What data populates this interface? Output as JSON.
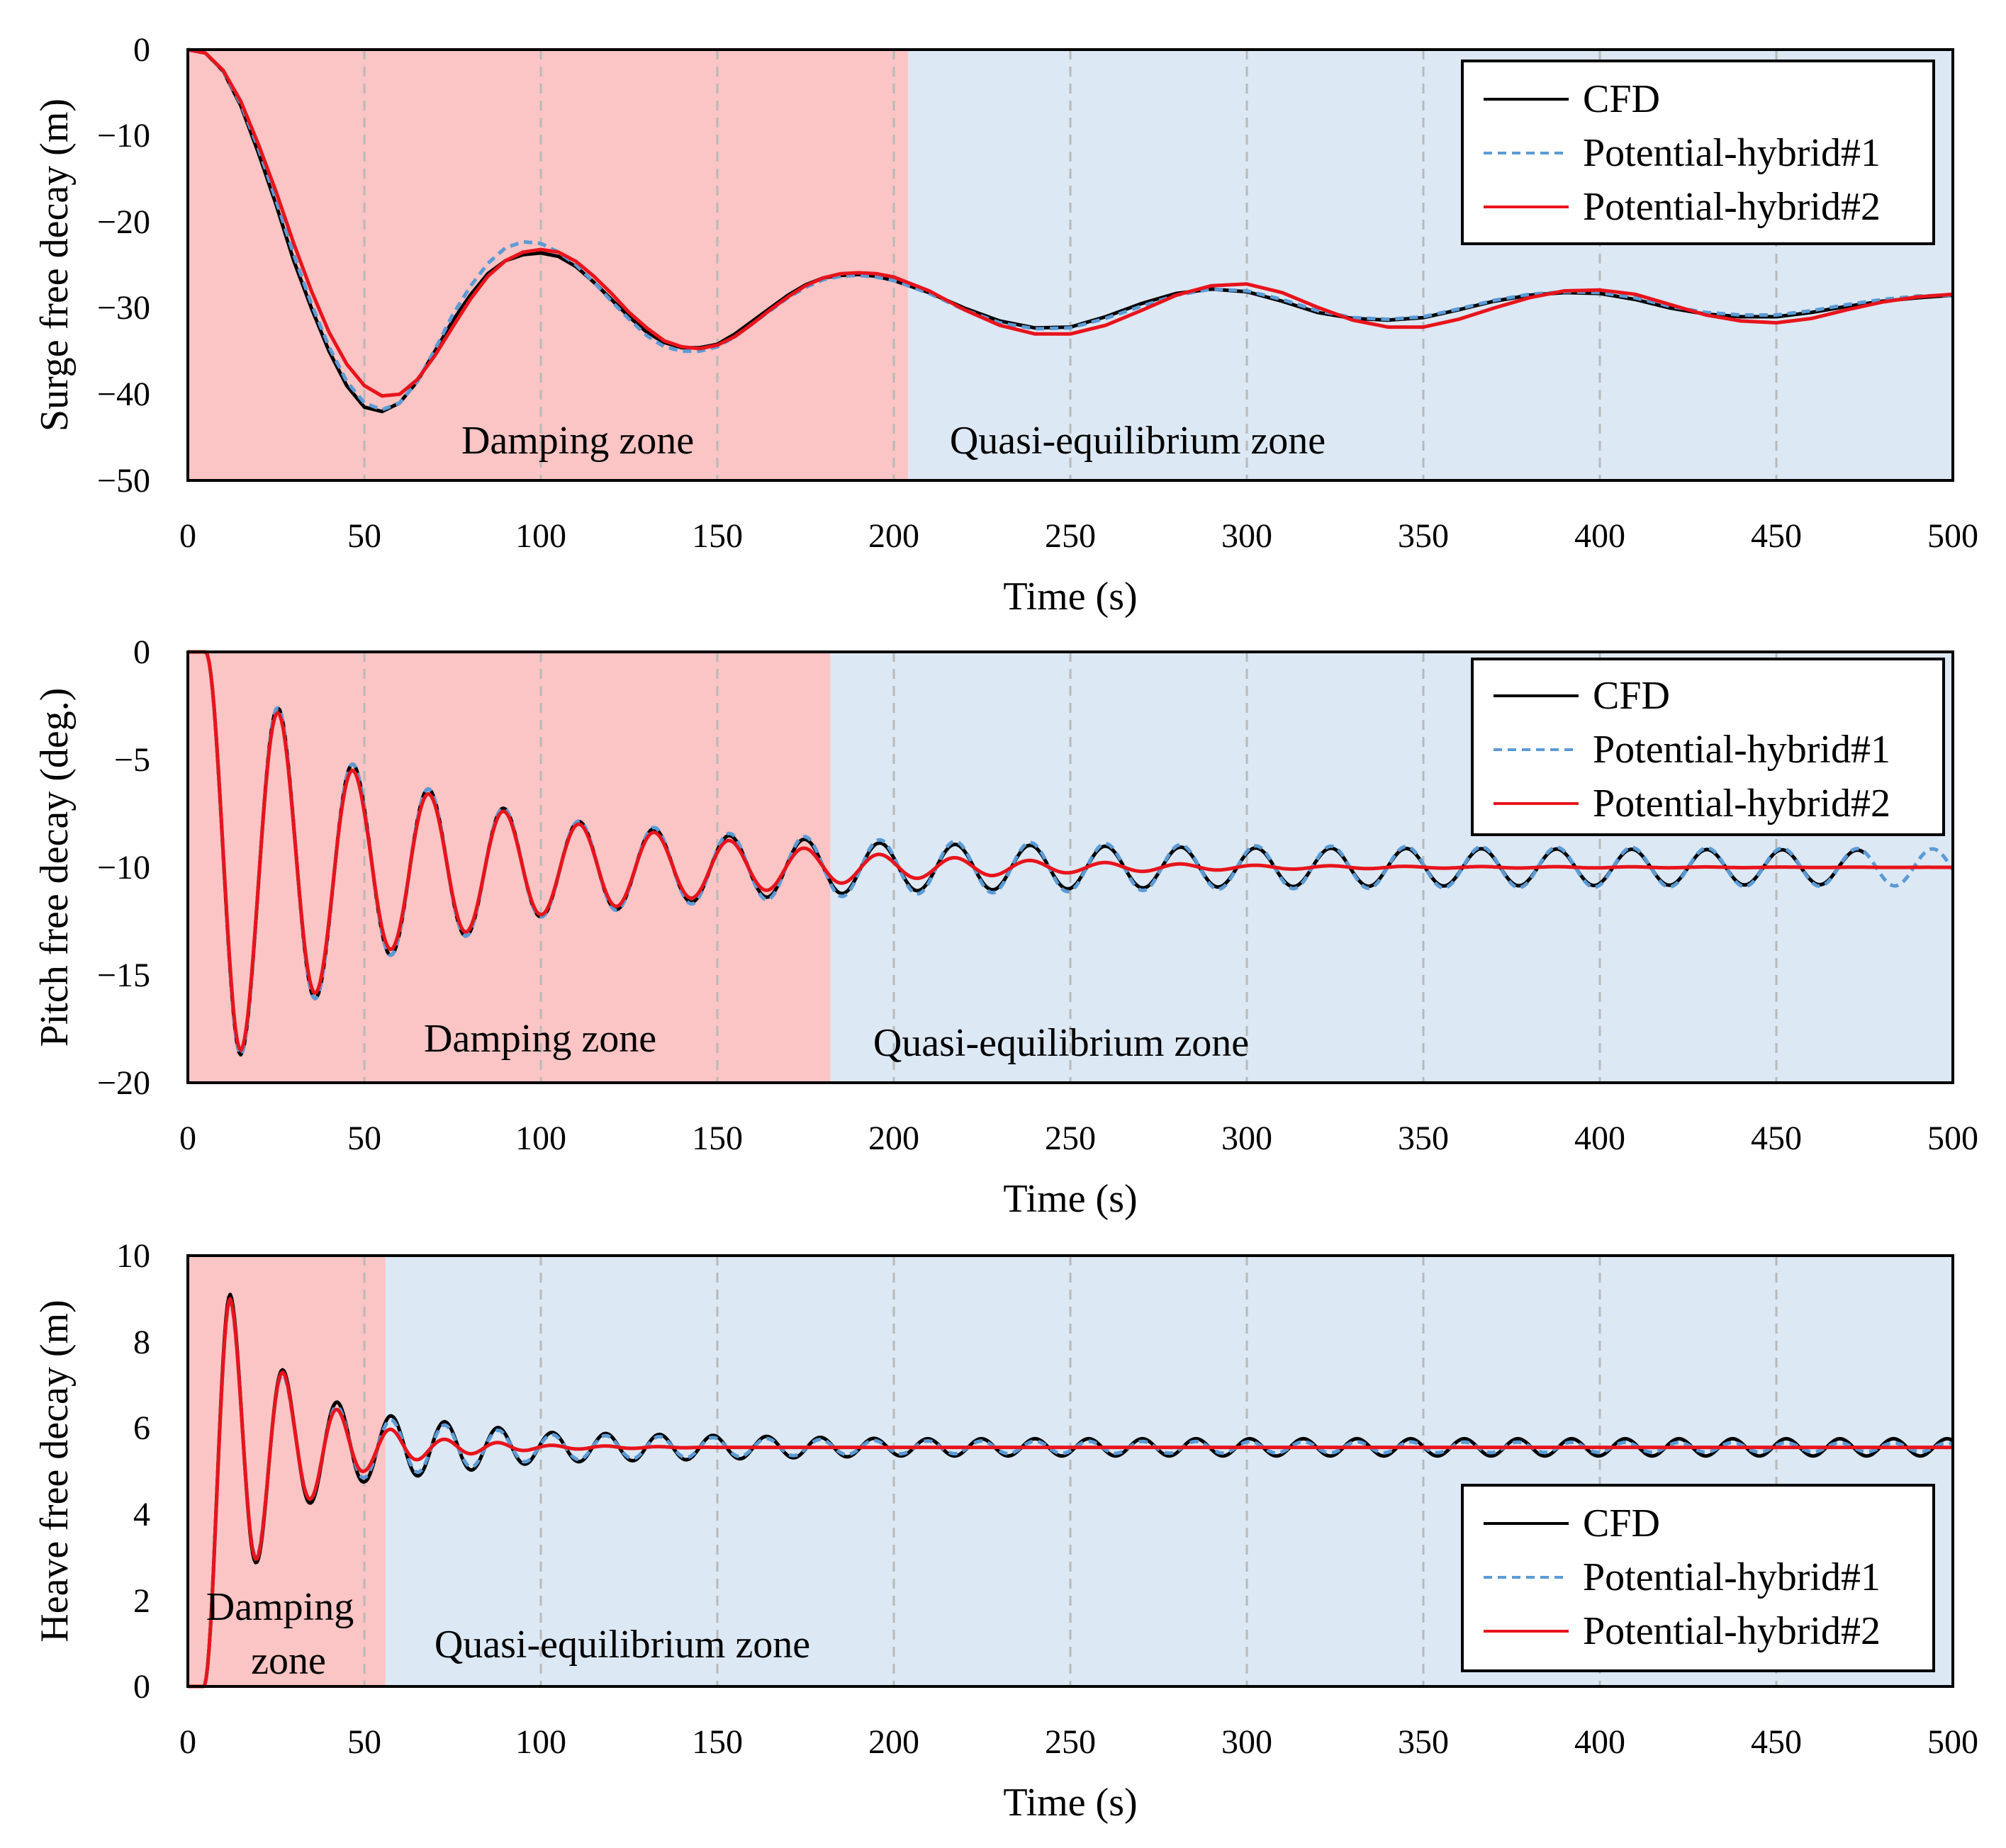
{
  "colors": {
    "damping_zone": "#fbc4c5",
    "equilibrium_zone": "#dce8f4",
    "grid": "#b9b9b9",
    "cfd": "#000000",
    "hybrid1": "#5b9bd5",
    "hybrid2": "#e8141c"
  },
  "chart_data": [
    {
      "type": "line",
      "id": "surge",
      "xlabel": "Time (s)",
      "ylabel": "Surge free decay (m)",
      "xlim": [
        0,
        500
      ],
      "ylim": [
        -50,
        0
      ],
      "x_ticks": [
        0,
        50,
        100,
        150,
        200,
        250,
        300,
        350,
        400,
        450,
        500
      ],
      "y_ticks": [
        0,
        -10,
        -20,
        -30,
        -40,
        -50
      ],
      "y_tick_labels": [
        "0",
        "−10",
        "−20",
        "−30",
        "−40",
        "−50"
      ],
      "grid": "vertical-dashed",
      "legend_position": "top-right",
      "zones": [
        {
          "label": "Damping zone",
          "x_start": 0,
          "x_end": 204,
          "color_key": "damping_zone"
        },
        {
          "label": "Quasi-equilibrium zone",
          "x_start": 204,
          "x_end": 500,
          "color_key": "equilibrium_zone"
        }
      ],
      "series": [
        {
          "name": "CFD",
          "color_key": "cfd",
          "style": "solid",
          "x": [
            0,
            5,
            10,
            15,
            20,
            25,
            30,
            35,
            40,
            45,
            50,
            55,
            60,
            65,
            70,
            75,
            80,
            85,
            90,
            95,
            100,
            105,
            110,
            115,
            120,
            125,
            130,
            135,
            140,
            145,
            150,
            155,
            160,
            165,
            170,
            175,
            180,
            185,
            190,
            195,
            200,
            210,
            220,
            230,
            240,
            250,
            260,
            270,
            280,
            290,
            300,
            310,
            320,
            330,
            340,
            350,
            360,
            370,
            380,
            390,
            400,
            410,
            420,
            430,
            440,
            450,
            460,
            470,
            480,
            490,
            500
          ],
          "y": [
            0,
            -0.4,
            -2.5,
            -6.5,
            -12,
            -18,
            -24.5,
            -30,
            -35,
            -39,
            -41.5,
            -42,
            -41,
            -38.5,
            -35,
            -31.5,
            -28.5,
            -26,
            -24.5,
            -23.8,
            -23.6,
            -24,
            -25.2,
            -27,
            -29,
            -31,
            -32.8,
            -34,
            -34.6,
            -34.6,
            -34.2,
            -33,
            -31.5,
            -30,
            -28.5,
            -27.3,
            -26.5,
            -26.2,
            -26.1,
            -26.3,
            -26.8,
            -28.2,
            -30,
            -31.5,
            -32.3,
            -32.2,
            -31,
            -29.5,
            -28.3,
            -27.8,
            -28.1,
            -29.2,
            -30.5,
            -31.2,
            -31.4,
            -31.1,
            -30.2,
            -29.2,
            -28.5,
            -28.2,
            -28.3,
            -29,
            -30,
            -30.7,
            -31,
            -31,
            -30.5,
            -29.8,
            -29.2,
            -28.8,
            -28.5
          ]
        },
        {
          "name": "Potential-hybrid#1",
          "color_key": "hybrid1",
          "style": "dashed",
          "x": [
            0,
            5,
            10,
            15,
            20,
            25,
            30,
            35,
            40,
            45,
            50,
            55,
            60,
            65,
            70,
            75,
            80,
            85,
            90,
            95,
            100,
            105,
            110,
            115,
            120,
            125,
            130,
            135,
            140,
            145,
            150,
            155,
            160,
            165,
            170,
            175,
            180,
            185,
            190,
            195,
            200,
            210,
            220,
            230,
            240,
            250,
            260,
            270,
            280,
            290,
            300,
            310,
            320,
            330,
            340,
            350,
            360,
            370,
            380,
            390,
            400,
            410,
            420,
            430,
            440,
            450,
            460,
            470,
            480,
            490,
            500
          ],
          "y": [
            0,
            -0.4,
            -2.5,
            -6.3,
            -11.5,
            -17.5,
            -23.8,
            -29.5,
            -34.5,
            -38.5,
            -41,
            -41.8,
            -41,
            -38.5,
            -34.8,
            -30.8,
            -27.5,
            -24.8,
            -23,
            -22.3,
            -22.5,
            -23.5,
            -25,
            -27,
            -29.2,
            -31.3,
            -33.2,
            -34.5,
            -35,
            -35,
            -34.5,
            -33.3,
            -31.8,
            -30.3,
            -28.8,
            -27.6,
            -26.7,
            -26.3,
            -26.2,
            -26.4,
            -26.8,
            -28.3,
            -30.2,
            -31.7,
            -32.4,
            -32.3,
            -31.2,
            -29.8,
            -28.5,
            -27.8,
            -28,
            -29,
            -30.3,
            -31.1,
            -31.3,
            -31,
            -30.1,
            -29.1,
            -28.4,
            -28.1,
            -28.2,
            -28.8,
            -29.8,
            -30.5,
            -30.8,
            -30.8,
            -30.3,
            -29.6,
            -29,
            -28.6,
            -28.5
          ]
        },
        {
          "name": "Potential-hybrid#2",
          "color_key": "hybrid2",
          "style": "solid",
          "x": [
            0,
            5,
            10,
            15,
            20,
            25,
            30,
            35,
            40,
            45,
            50,
            55,
            60,
            65,
            70,
            75,
            80,
            85,
            90,
            95,
            100,
            105,
            110,
            115,
            120,
            125,
            130,
            135,
            140,
            145,
            150,
            155,
            160,
            165,
            170,
            175,
            180,
            185,
            190,
            195,
            200,
            210,
            220,
            230,
            240,
            250,
            260,
            270,
            280,
            290,
            300,
            310,
            320,
            330,
            340,
            350,
            360,
            370,
            380,
            390,
            400,
            410,
            420,
            430,
            440,
            450,
            460,
            470,
            480,
            490,
            500
          ],
          "y": [
            0,
            -0.4,
            -2.4,
            -6,
            -11,
            -16.5,
            -22.5,
            -28,
            -32.8,
            -36.5,
            -39,
            -40.2,
            -40,
            -38.3,
            -35.5,
            -32.2,
            -29,
            -26.3,
            -24.5,
            -23.5,
            -23.2,
            -23.5,
            -24.6,
            -26.3,
            -28.3,
            -30.5,
            -32.3,
            -33.8,
            -34.5,
            -34.7,
            -34.3,
            -33.3,
            -31.8,
            -30.2,
            -28.7,
            -27.4,
            -26.5,
            -26,
            -25.9,
            -26,
            -26.4,
            -28,
            -30.2,
            -32,
            -33,
            -33,
            -32,
            -30.3,
            -28.5,
            -27.4,
            -27.2,
            -28.2,
            -29.9,
            -31.4,
            -32.2,
            -32.2,
            -31.3,
            -30,
            -28.8,
            -28,
            -27.9,
            -28.4,
            -29.6,
            -30.8,
            -31.5,
            -31.7,
            -31.2,
            -30.2,
            -29.3,
            -28.7,
            -28.4
          ]
        }
      ]
    },
    {
      "type": "line",
      "id": "pitch",
      "xlabel": "Time (s)",
      "ylabel": "Pitch free decay (deg.)",
      "xlim": [
        0,
        500
      ],
      "ylim": [
        -20,
        0
      ],
      "x_ticks": [
        0,
        50,
        100,
        150,
        200,
        250,
        300,
        350,
        400,
        450,
        500
      ],
      "y_ticks": [
        0,
        -5,
        -10,
        -15,
        -20
      ],
      "y_tick_labels": [
        "0",
        "−5",
        "−10",
        "−15",
        "−20"
      ],
      "grid": "vertical-dashed",
      "legend_position": "top-right",
      "zones": [
        {
          "label": "Damping zone",
          "x_start": 0,
          "x_end": 182,
          "color_key": "damping_zone"
        },
        {
          "label": "Quasi-equilibrium zone",
          "x_start": 182,
          "x_end": 500,
          "color_key": "equilibrium_zone"
        }
      ],
      "series": [
        {
          "name": "CFD",
          "color_key": "cfd",
          "style": "solid",
          "x_end": 475,
          "envelope": {
            "period": 21.3,
            "first_trough_time": 15,
            "peaks": [
              [
                15,
                -8.7
              ],
              [
                50,
                -4.4
              ],
              [
                100,
                -2.3
              ],
              [
                150,
                -1.5
              ],
              [
                200,
                -1.1
              ],
              [
                300,
                -0.9
              ],
              [
                475,
                -0.8
              ]
            ]
          }
        },
        {
          "name": "Potential-hybrid#1",
          "color_key": "hybrid1",
          "style": "dashed",
          "x_end": 500,
          "envelope": {
            "period": 21.3,
            "first_trough_time": 15,
            "peaks": [
              [
                15,
                -8.7
              ],
              [
                50,
                -4.4
              ],
              [
                100,
                -2.3
              ],
              [
                150,
                -1.6
              ],
              [
                200,
                -1.25
              ],
              [
                300,
                -1.0
              ],
              [
                500,
                -0.85
              ]
            ]
          }
        },
        {
          "name": "Potential-hybrid#2",
          "color_key": "hybrid2",
          "style": "solid",
          "x_end": 500,
          "envelope": {
            "period": 21.3,
            "first_trough_time": 15,
            "peaks": [
              [
                15,
                -8.5
              ],
              [
                50,
                -4.1
              ],
              [
                100,
                -2.2
              ],
              [
                150,
                -1.3
              ],
              [
                180,
                -0.8
              ],
              [
                200,
                -0.55
              ],
              [
                250,
                -0.25
              ],
              [
                300,
                -0.1
              ],
              [
                350,
                -0.04
              ],
              [
                500,
                0
              ]
            ]
          }
        }
      ],
      "equilibrium": -10
    },
    {
      "type": "line",
      "id": "heave",
      "xlabel": "Time (s)",
      "ylabel": "Heave free decay (m)",
      "xlim": [
        0,
        500
      ],
      "ylim": [
        0,
        10
      ],
      "x_ticks": [
        0,
        50,
        100,
        150,
        200,
        250,
        300,
        350,
        400,
        450,
        500
      ],
      "y_ticks": [
        0,
        2,
        4,
        6,
        8,
        10
      ],
      "y_tick_labels": [
        "0",
        "2",
        "4",
        "6",
        "8",
        "10"
      ],
      "grid": "vertical-dashed",
      "legend_position": "bottom-right",
      "zones": [
        {
          "label": "Damping zone",
          "x_start": 0,
          "x_end": 56,
          "color_key": "damping_zone"
        },
        {
          "label": "Quasi-equilibrium zone",
          "x_start": 56,
          "x_end": 500,
          "color_key": "equilibrium_zone"
        }
      ],
      "series": [
        {
          "name": "CFD",
          "color_key": "cfd",
          "style": "solid",
          "x_end": 500,
          "envelope": {
            "period": 15.2,
            "first_peak_time": 12,
            "peaks": [
              [
                12,
                3.55
              ],
              [
                30,
                1.45
              ],
              [
                50,
                0.8
              ],
              [
                100,
                0.35
              ],
              [
                200,
                0.2
              ],
              [
                500,
                0.2
              ]
            ]
          }
        },
        {
          "name": "Potential-hybrid#1",
          "color_key": "hybrid1",
          "style": "dashed",
          "x_end": 500,
          "envelope": {
            "period": 15.2,
            "first_peak_time": 12,
            "peaks": [
              [
                12,
                3.4
              ],
              [
                30,
                1.35
              ],
              [
                50,
                0.7
              ],
              [
                100,
                0.3
              ],
              [
                200,
                0.15
              ],
              [
                500,
                0.1
              ]
            ]
          }
        },
        {
          "name": "Potential-hybrid#2",
          "color_key": "hybrid2",
          "style": "solid",
          "x_end": 500,
          "envelope": {
            "period": 15.2,
            "first_peak_time": 12,
            "peaks": [
              [
                12,
                3.45
              ],
              [
                30,
                1.4
              ],
              [
                50,
                0.55
              ],
              [
                70,
                0.2
              ],
              [
                100,
                0.05
              ],
              [
                150,
                0
              ],
              [
                500,
                0
              ]
            ]
          }
        }
      ],
      "equilibrium": 5.55
    }
  ],
  "panels": {
    "surge": {
      "ylabel": "Surge free decay (m)",
      "xlabel": "Time (s)",
      "x_tick_labels": [
        "0",
        "50",
        "100",
        "150",
        "200",
        "250",
        "300",
        "350",
        "400",
        "450",
        "500"
      ],
      "y_tick_labels": [
        "0",
        "−10",
        "−20",
        "−30",
        "−40",
        "−50"
      ],
      "damping_label": "Damping zone",
      "equilibrium_label": "Quasi-equilibrium zone",
      "legend": [
        "CFD",
        "Potential-hybrid#1",
        "Potential-hybrid#2"
      ]
    },
    "pitch": {
      "ylabel": "Pitch free decay (deg.)",
      "xlabel": "Time (s)",
      "x_tick_labels": [
        "0",
        "50",
        "100",
        "150",
        "200",
        "250",
        "300",
        "350",
        "400",
        "450",
        "500"
      ],
      "y_tick_labels": [
        "0",
        "−5",
        "−10",
        "−15",
        "−20"
      ],
      "damping_label": "Damping zone",
      "equilibrium_label": "Quasi-equilibrium zone",
      "legend": [
        "CFD",
        "Potential-hybrid#1",
        "Potential-hybrid#2"
      ]
    },
    "heave": {
      "ylabel": "Heave free decay (m)",
      "xlabel": "Time (s)",
      "x_tick_labels": [
        "0",
        "50",
        "100",
        "150",
        "200",
        "250",
        "300",
        "350",
        "400",
        "450",
        "500"
      ],
      "y_tick_labels": [
        "0",
        "2",
        "4",
        "6",
        "8",
        "10"
      ],
      "damping_label_line1": "Damping",
      "damping_label_line2": "zone",
      "equilibrium_label": "Quasi-equilibrium zone",
      "legend": [
        "CFD",
        "Potential-hybrid#1",
        "Potential-hybrid#2"
      ]
    }
  }
}
